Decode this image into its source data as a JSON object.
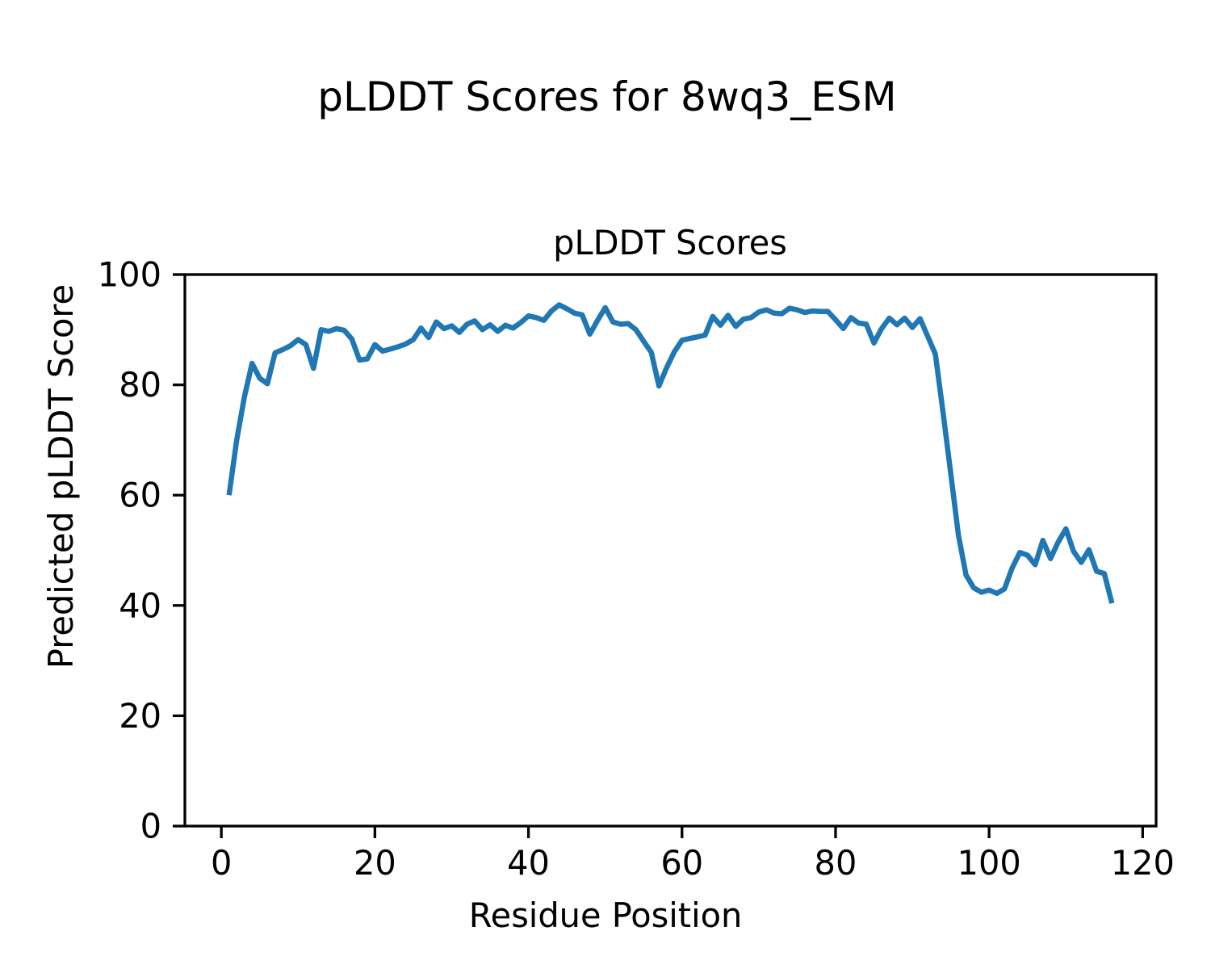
{
  "figure": {
    "suptitle": "pLDDT Scores for 8wq3_ESM",
    "background_color": "#ffffff",
    "text_color": "#000000"
  },
  "chart_data": {
    "type": "line",
    "title": "pLDDT Scores",
    "xlabel": "Residue Position",
    "ylabel": "Predicted pLDDT Score",
    "line_color": "#1f77b4",
    "grid": false,
    "legend": null,
    "xlim": [
      -4.75,
      121.75
    ],
    "ylim": [
      0,
      100
    ],
    "xticks": [
      0,
      20,
      40,
      60,
      80,
      100,
      120
    ],
    "yticks": [
      0,
      20,
      40,
      60,
      80,
      100
    ],
    "x": [
      1,
      2,
      3,
      4,
      5,
      6,
      7,
      8,
      9,
      10,
      11,
      12,
      13,
      14,
      15,
      16,
      17,
      18,
      19,
      20,
      21,
      22,
      23,
      24,
      25,
      26,
      27,
      28,
      29,
      30,
      31,
      32,
      33,
      34,
      35,
      36,
      37,
      38,
      39,
      40,
      41,
      42,
      43,
      44,
      45,
      46,
      47,
      48,
      49,
      50,
      51,
      52,
      53,
      54,
      55,
      56,
      57,
      58,
      59,
      60,
      61,
      62,
      63,
      64,
      65,
      66,
      67,
      68,
      69,
      70,
      71,
      72,
      73,
      74,
      75,
      76,
      77,
      78,
      79,
      80,
      81,
      82,
      83,
      84,
      85,
      86,
      87,
      88,
      89,
      90,
      91,
      92,
      93,
      94,
      95,
      96,
      97,
      98,
      99,
      100,
      101,
      102,
      103,
      104,
      105,
      106,
      107,
      108,
      109,
      110,
      111,
      112,
      113,
      114,
      115,
      116
    ],
    "y": [
      60.0,
      70.0,
      77.8,
      83.9,
      81.2,
      80.2,
      85.8,
      86.4,
      87.1,
      88.2,
      87.3,
      83.0,
      90.0,
      89.7,
      90.2,
      89.9,
      88.3,
      84.5,
      84.7,
      87.3,
      86.1,
      86.5,
      86.9,
      87.4,
      88.2,
      90.3,
      88.6,
      91.4,
      90.2,
      90.7,
      89.5,
      91.0,
      91.6,
      90.0,
      90.9,
      89.7,
      90.8,
      90.3,
      91.3,
      92.5,
      92.2,
      91.7,
      93.4,
      94.5,
      93.8,
      93.0,
      92.7,
      89.2,
      91.7,
      94.0,
      91.4,
      91.0,
      91.1,
      90.0,
      87.9,
      85.9,
      79.8,
      83.1,
      86.0,
      88.1,
      88.4,
      88.7,
      89.0,
      92.4,
      90.8,
      92.6,
      90.6,
      91.9,
      92.2,
      93.2,
      93.6,
      93.0,
      92.9,
      93.9,
      93.6,
      93.1,
      93.4,
      93.3,
      93.3,
      91.8,
      90.2,
      92.2,
      91.2,
      91.0,
      87.6,
      90.2,
      92.1,
      90.9,
      92.1,
      90.4,
      92.0,
      88.8,
      85.6,
      75.0,
      64.0,
      52.8,
      45.5,
      43.2,
      42.4,
      42.8,
      42.2,
      43.0,
      46.8,
      49.6,
      49.1,
      47.4,
      51.8,
      48.5,
      51.5,
      53.9,
      49.8,
      47.8,
      50.1,
      46.2,
      45.8,
      40.4
    ]
  }
}
